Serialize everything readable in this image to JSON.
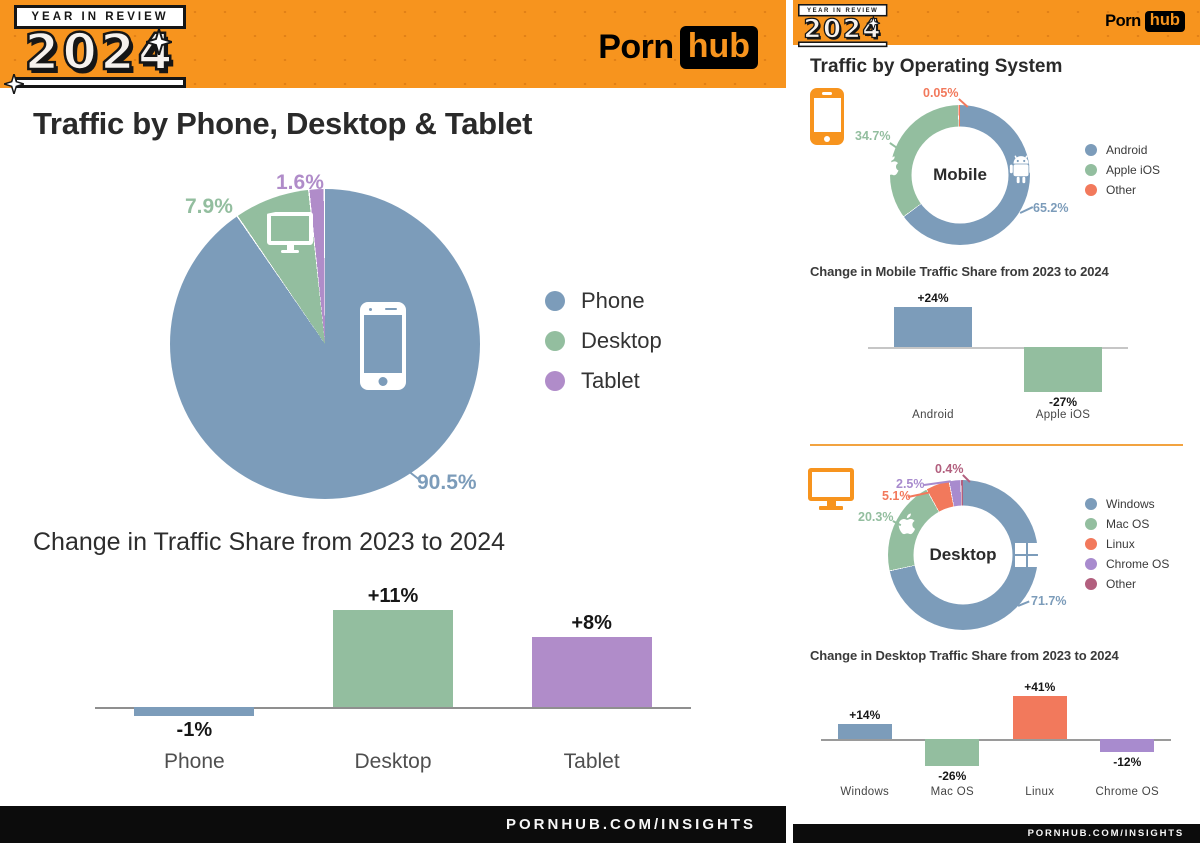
{
  "header": {
    "badge_top": "YEAR IN REVIEW",
    "badge_year": "2024",
    "brand_porn": "Porn",
    "brand_hub": "hub"
  },
  "footer": {
    "url": "PORNHUB.COM/INSIGHTS"
  },
  "right_panel": {
    "title": "Traffic by Operating System"
  },
  "brand_colors": {
    "orange": "#F7941E",
    "black": "#0C0C0C",
    "blue": "#7C9CBA",
    "green": "#93BE9F",
    "purple": "#B08CC9",
    "salmon": "#F2795C",
    "maroon": "#B25F7E"
  },
  "chart_data": [
    {
      "id": "device-share-pie",
      "type": "pie",
      "title": "Traffic by Phone, Desktop & Tablet",
      "categories": [
        "Phone",
        "Desktop",
        "Tablet"
      ],
      "values": [
        90.5,
        7.9,
        1.6
      ],
      "labels": [
        "90.5%",
        "7.9%",
        "1.6%"
      ],
      "colors": [
        "#7C9CBA",
        "#93BE9F",
        "#B08CC9"
      ],
      "legend_position": "right"
    },
    {
      "id": "device-share-change",
      "type": "bar",
      "title": "Change in Traffic Share from 2023 to 2024",
      "categories": [
        "Phone",
        "Desktop",
        "Tablet"
      ],
      "values": [
        -1,
        11,
        8
      ],
      "labels": [
        "-1%",
        "+11%",
        "+8%"
      ],
      "colors": [
        "#7C9CBA",
        "#93BE9F",
        "#B08CC9"
      ],
      "baseline": 0
    },
    {
      "id": "mobile-os-donut",
      "type": "pie",
      "center_label": "Mobile",
      "categories": [
        "Android",
        "Apple iOS",
        "Other"
      ],
      "values": [
        65.2,
        34.7,
        0.05
      ],
      "labels": [
        "65.2%",
        "34.7%",
        "0.05%"
      ],
      "colors": [
        "#7C9CBA",
        "#93BE9F",
        "#F2795C"
      ],
      "legend_position": "right"
    },
    {
      "id": "mobile-os-change",
      "type": "bar",
      "title": "Change in Mobile Traffic Share from 2023 to 2024",
      "categories": [
        "Android",
        "Apple iOS"
      ],
      "values": [
        24,
        -27
      ],
      "labels": [
        "+24%",
        "-27%"
      ],
      "colors": [
        "#7C9CBA",
        "#93BE9F"
      ],
      "baseline": 0
    },
    {
      "id": "desktop-os-donut",
      "type": "pie",
      "center_label": "Desktop",
      "categories": [
        "Windows",
        "Mac OS",
        "Linux",
        "Chrome OS",
        "Other"
      ],
      "values": [
        71.7,
        20.3,
        5.1,
        2.5,
        0.4
      ],
      "labels": [
        "71.7%",
        "20.3%",
        "5.1%",
        "2.5%",
        "0.4%"
      ],
      "colors": [
        "#7C9CBA",
        "#93BE9F",
        "#F2795C",
        "#A88BCE",
        "#B25F7E"
      ],
      "legend_position": "right"
    },
    {
      "id": "desktop-os-change",
      "type": "bar",
      "title": "Change in Desktop Traffic Share from 2023 to 2024",
      "categories": [
        "Windows",
        "Mac OS",
        "Linux",
        "Chrome OS"
      ],
      "values": [
        14,
        -26,
        41,
        -12
      ],
      "labels": [
        "+14%",
        "-26%",
        "+41%",
        "-12%"
      ],
      "colors": [
        "#7C9CBA",
        "#93BE9F",
        "#F2795C",
        "#A88BCE"
      ],
      "baseline": 0
    }
  ]
}
